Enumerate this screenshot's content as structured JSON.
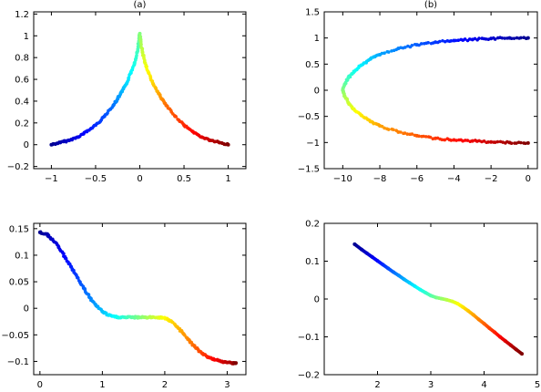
{
  "chart_data": [
    {
      "type": "scatter",
      "title": "(a)",
      "xlim": [
        -1.2,
        1.2
      ],
      "ylim": [
        -0.22,
        1.22
      ],
      "xticks": [
        -1,
        -0.5,
        0,
        0.5,
        1
      ],
      "xtick_labels": [
        "−1",
        "−0.5",
        "0",
        "0.5",
        "1"
      ],
      "yticks": [
        -0.2,
        0,
        0.2,
        0.4,
        0.6,
        0.8,
        1,
        1.2
      ],
      "ytick_labels": [
        "−0.2",
        "0",
        "0.2",
        "0.4",
        "0.6",
        "0.8",
        "1",
        "1.2"
      ],
      "colormap": "jet",
      "series": [
        {
          "x": [
            -1.0,
            -0.9,
            -0.8,
            -0.7,
            -0.6,
            -0.5,
            -0.4,
            -0.3,
            -0.25,
            -0.2,
            -0.15,
            -0.1,
            -0.06,
            -0.03,
            -0.01,
            0.0,
            0.01,
            0.03,
            0.06,
            0.1,
            0.15,
            0.2,
            0.25,
            0.3,
            0.4,
            0.5,
            0.6,
            0.7,
            0.8,
            0.9,
            1.0
          ],
          "y": [
            0.0,
            0.02,
            0.04,
            0.07,
            0.12,
            0.18,
            0.26,
            0.36,
            0.42,
            0.49,
            0.56,
            0.66,
            0.75,
            0.85,
            0.95,
            1.02,
            0.95,
            0.85,
            0.75,
            0.66,
            0.56,
            0.49,
            0.42,
            0.36,
            0.26,
            0.18,
            0.12,
            0.07,
            0.04,
            0.02,
            0.0
          ]
        }
      ]
    },
    {
      "type": "scatter",
      "title": "(b)",
      "xlim": [
        -11,
        0.5
      ],
      "ylim": [
        -1.5,
        1.5
      ],
      "xticks": [
        -10,
        -8,
        -6,
        -4,
        -2,
        0
      ],
      "xtick_labels": [
        "−10",
        "−8",
        "−6",
        "−4",
        "−2",
        "0"
      ],
      "yticks": [
        -1.5,
        -1,
        -0.5,
        0,
        0.5,
        1,
        1.5
      ],
      "ytick_labels": [
        "−1.5",
        "−1",
        "−0.5",
        "0",
        "0.5",
        "1",
        "1.5"
      ],
      "colormap": "jet",
      "series": [
        {
          "x": [
            0,
            -1,
            -2,
            -3,
            -4,
            -5,
            -6,
            -7,
            -8,
            -8.5,
            -9,
            -9.4,
            -9.7,
            -9.9,
            -10.0,
            -9.9,
            -9.7,
            -9.4,
            -9,
            -8.5,
            -8,
            -7,
            -6,
            -5,
            -4,
            -3,
            -2,
            -1,
            0
          ],
          "y": [
            1.0,
            1.0,
            0.99,
            0.97,
            0.95,
            0.92,
            0.87,
            0.8,
            0.68,
            0.6,
            0.48,
            0.36,
            0.24,
            0.11,
            0.0,
            -0.11,
            -0.24,
            -0.36,
            -0.48,
            -0.6,
            -0.68,
            -0.8,
            -0.87,
            -0.92,
            -0.95,
            -0.97,
            -0.99,
            -1.0,
            -1.01
          ]
        }
      ]
    },
    {
      "type": "scatter",
      "title": "",
      "xlim": [
        -0.1,
        3.3
      ],
      "ylim": [
        -0.125,
        0.16
      ],
      "xticks": [
        0,
        1,
        2,
        3
      ],
      "xtick_labels": [
        "0",
        "1",
        "2",
        "3"
      ],
      "yticks": [
        -0.1,
        -0.05,
        0,
        0.05,
        0.1,
        0.15
      ],
      "ytick_labels": [
        "−0.1",
        "−0.05",
        "0",
        "0.05",
        "0.1",
        "0.15"
      ],
      "colormap": "jet",
      "series": [
        {
          "x": [
            0.0,
            0.1,
            0.2,
            0.3,
            0.4,
            0.5,
            0.6,
            0.7,
            0.8,
            0.9,
            1.0,
            1.1,
            1.2,
            1.3,
            1.4,
            1.5,
            1.6,
            1.7,
            1.8,
            1.9,
            2.0,
            2.1,
            2.2,
            2.3,
            2.4,
            2.5,
            2.6,
            2.7,
            2.8,
            2.9,
            3.0,
            3.1,
            3.14
          ],
          "y": [
            0.143,
            0.14,
            0.13,
            0.115,
            0.097,
            0.078,
            0.058,
            0.038,
            0.02,
            0.005,
            -0.006,
            -0.013,
            -0.016,
            -0.017,
            -0.017,
            -0.017,
            -0.017,
            -0.017,
            -0.017,
            -0.017,
            -0.018,
            -0.024,
            -0.035,
            -0.048,
            -0.062,
            -0.075,
            -0.085,
            -0.092,
            -0.097,
            -0.1,
            -0.102,
            -0.103,
            -0.103
          ]
        }
      ]
    },
    {
      "type": "scatter",
      "title": "",
      "xlim": [
        1,
        5
      ],
      "ylim": [
        -0.2,
        0.2
      ],
      "xticks": [
        2,
        3,
        4,
        5
      ],
      "xtick_labels": [
        "2",
        "3",
        "4",
        "5"
      ],
      "yticks": [
        -0.2,
        -0.1,
        0,
        0.1,
        0.2
      ],
      "ytick_labels": [
        "−0.2",
        "−0.1",
        "0",
        "0.1",
        "0.2"
      ],
      "colormap": "jet",
      "series": [
        {
          "x": [
            1.57,
            1.7,
            1.8,
            1.9,
            2.0,
            2.1,
            2.2,
            2.3,
            2.4,
            2.5,
            2.6,
            2.7,
            2.8,
            2.9,
            3.0,
            3.1,
            3.2,
            3.3,
            3.4,
            3.5,
            3.6,
            3.7,
            3.8,
            3.9,
            4.0,
            4.1,
            4.2,
            4.3,
            4.4,
            4.5,
            4.6,
            4.71
          ],
          "y": [
            0.145,
            0.131,
            0.121,
            0.111,
            0.101,
            0.091,
            0.081,
            0.071,
            0.062,
            0.052,
            0.043,
            0.034,
            0.025,
            0.017,
            0.009,
            0.004,
            0.001,
            -0.002,
            -0.006,
            -0.012,
            -0.021,
            -0.031,
            -0.042,
            -0.054,
            -0.065,
            -0.077,
            -0.088,
            -0.1,
            -0.111,
            -0.122,
            -0.133,
            -0.145
          ]
        }
      ]
    }
  ]
}
